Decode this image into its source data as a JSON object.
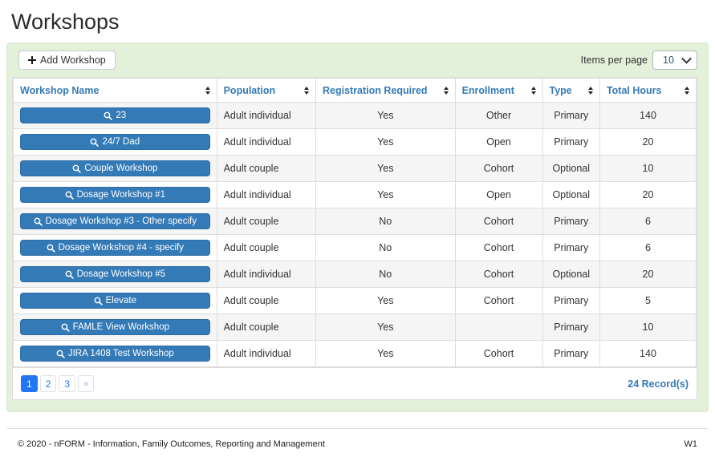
{
  "page": {
    "title": "Workshops"
  },
  "toolbar": {
    "add_button_label": "Add Workshop",
    "items_per_page_label": "Items per page",
    "items_per_page_value": "10"
  },
  "table": {
    "columns": [
      "Workshop Name",
      "Population",
      "Registration Required",
      "Enrollment",
      "Type",
      "Total Hours"
    ],
    "rows": [
      {
        "name": "23",
        "population": "Adult individual",
        "registration_required": "Yes",
        "enrollment": "Other",
        "type": "Primary",
        "total_hours": "140"
      },
      {
        "name": "24/7 Dad",
        "population": "Adult individual",
        "registration_required": "Yes",
        "enrollment": "Open",
        "type": "Primary",
        "total_hours": "20"
      },
      {
        "name": "Couple Workshop",
        "population": "Adult couple",
        "registration_required": "Yes",
        "enrollment": "Cohort",
        "type": "Optional",
        "total_hours": "10"
      },
      {
        "name": "Dosage Workshop #1",
        "population": "Adult individual",
        "registration_required": "Yes",
        "enrollment": "Open",
        "type": "Optional",
        "total_hours": "20"
      },
      {
        "name": "Dosage Workshop #3 - Other specify",
        "population": "Adult couple",
        "registration_required": "No",
        "enrollment": "Cohort",
        "type": "Primary",
        "total_hours": "6"
      },
      {
        "name": "Dosage Workshop #4 - specify",
        "population": "Adult couple",
        "registration_required": "No",
        "enrollment": "Cohort",
        "type": "Primary",
        "total_hours": "6"
      },
      {
        "name": "Dosage Workshop #5",
        "population": "Adult individual",
        "registration_required": "No",
        "enrollment": "Cohort",
        "type": "Optional",
        "total_hours": "20"
      },
      {
        "name": "Elevate",
        "population": "Adult couple",
        "registration_required": "Yes",
        "enrollment": "Cohort",
        "type": "Primary",
        "total_hours": "5"
      },
      {
        "name": "FAMLE View Workshop",
        "population": "Adult couple",
        "registration_required": "Yes",
        "enrollment": "",
        "type": "Primary",
        "total_hours": "10"
      },
      {
        "name": "JIRA 1408 Test Workshop",
        "population": "Adult individual",
        "registration_required": "Yes",
        "enrollment": "Cohort",
        "type": "Primary",
        "total_hours": "140"
      }
    ]
  },
  "pagination": {
    "pages": [
      "1",
      "2",
      "3"
    ],
    "active_page": "1",
    "next_label": "»",
    "records_label": "24 Record(s)"
  },
  "footer": {
    "copyright": "© 2020 - nFORM - Information, Family Outcomes, Reporting and Management",
    "version": "W1"
  },
  "icons": {
    "plus": "plus-icon",
    "search": "search-icon",
    "sort": "sort-icon",
    "chevron_down": "chevron-down-icon"
  },
  "colors": {
    "panel_bg": "#e3f0da",
    "header_link_blue": "#337ab7",
    "workshop_button_blue": "#337ab7",
    "pagination_blue": "#2276f5",
    "row_stripe": "#f5f5f5",
    "table_border": "#dddddd"
  }
}
